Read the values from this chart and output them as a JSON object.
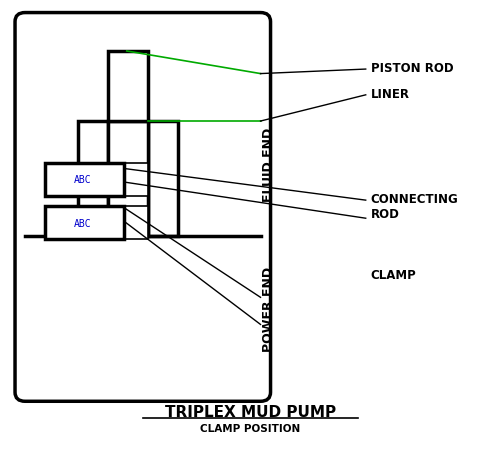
{
  "bg_color": "#ffffff",
  "line_color": "#000000",
  "green_color": "#00aa00",
  "blue_text_color": "#0000cc",
  "title": "TRIPLEX MUD PUMP",
  "subtitle": "CLAMP POSITION",
  "label_piston_rod": "PISTON ROD",
  "label_liner": "LINER",
  "label_fluid_end": "FLUID END",
  "label_power_end": "POWER END",
  "label_connecting_rod_1": "CONNECTING",
  "label_connecting_rod_2": "ROD",
  "label_clamp": "CLAMP",
  "abc_text": "ABC"
}
